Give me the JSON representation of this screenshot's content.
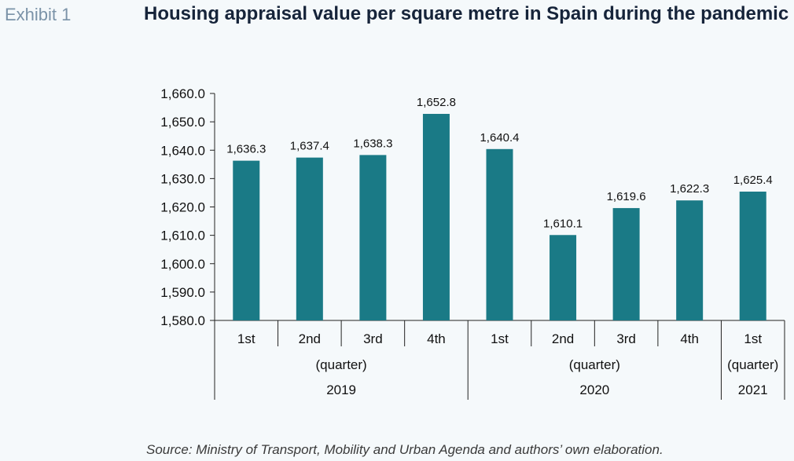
{
  "header": {
    "exhibit": "Exhibit 1",
    "title": "Housing appraisal value per square metre in Spain during the pandemic"
  },
  "footer": {
    "source": "Source: Ministry of Transport, Mobility and Urban Agenda and authors’ own elaboration."
  },
  "chart_data": {
    "type": "bar",
    "title": "Housing appraisal value per square metre in Spain during the pandemic",
    "xlabel": "",
    "ylabel": "",
    "ylim": [
      1580,
      1660
    ],
    "ytick_step": 10,
    "ytick_labels": [
      "1,580.0",
      "1,590.0",
      "1,600.0",
      "1,610.0",
      "1,620.0",
      "1,630.0",
      "1,640.0",
      "1,650.0",
      "1,660.0"
    ],
    "categories": [
      "1st",
      "2nd",
      "3rd",
      "4th",
      "1st",
      "2nd",
      "3rd",
      "4th",
      "1st"
    ],
    "values": [
      1636.3,
      1637.4,
      1638.3,
      1652.8,
      1640.4,
      1610.1,
      1619.6,
      1622.3,
      1625.4
    ],
    "value_labels": [
      "1,636.3",
      "1,637.4",
      "1,638.3",
      "1,652.8",
      "1,640.4",
      "1,610.1",
      "1,619.6",
      "1,622.3",
      "1,625.4"
    ],
    "groups": [
      {
        "year": "2019",
        "sublabel": "(quarter)",
        "count": 4
      },
      {
        "year": "2020",
        "sublabel": "(quarter)",
        "count": 4
      },
      {
        "year": "2021",
        "sublabel": "(quarter)",
        "count": 1
      }
    ],
    "bar_color": "#1a7a86",
    "grid": false
  }
}
